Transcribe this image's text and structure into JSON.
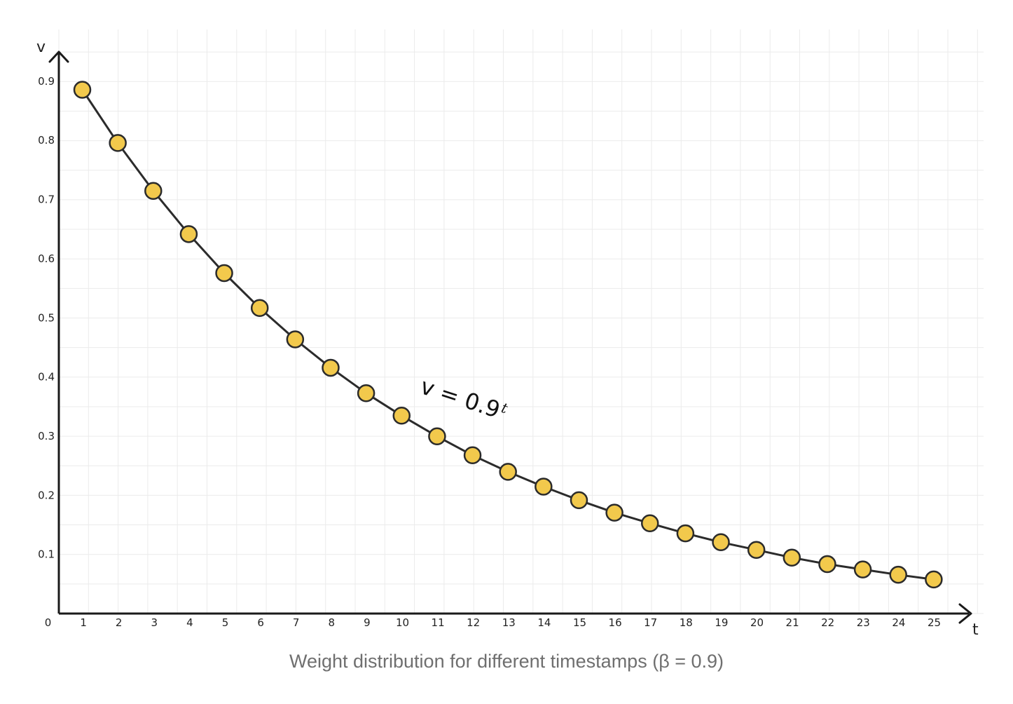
{
  "chart_data": {
    "type": "line",
    "x": [
      1,
      2,
      3,
      4,
      5,
      6,
      7,
      8,
      9,
      10,
      11,
      12,
      13,
      14,
      15,
      16,
      17,
      18,
      19,
      20,
      21,
      22,
      23,
      24,
      25
    ],
    "y": [
      0.9,
      0.81,
      0.729,
      0.656,
      0.59,
      0.531,
      0.478,
      0.43,
      0.387,
      0.349,
      0.314,
      0.282,
      0.254,
      0.229,
      0.206,
      0.185,
      0.167,
      0.15,
      0.135,
      0.122,
      0.109,
      0.098,
      0.089,
      0.08,
      0.072
    ],
    "series": [
      {
        "name": "v = 0.9^t"
      }
    ],
    "xlabel": "t",
    "ylabel": "v",
    "xlim": [
      0,
      25
    ],
    "ylim": [
      0,
      0.9
    ],
    "x_ticks": [
      "0",
      "1",
      "2",
      "3",
      "4",
      "5",
      "6",
      "7",
      "8",
      "9",
      "10",
      "11",
      "12",
      "13",
      "14",
      "15",
      "16",
      "17",
      "18",
      "19",
      "20",
      "21",
      "22",
      "23",
      "24",
      "25"
    ],
    "y_ticks": [
      "0.1",
      "0.2",
      "0.3",
      "0.4",
      "0.5",
      "0.6",
      "0.7",
      "0.8",
      "0.9"
    ],
    "annotation": {
      "base": "v = 0.9",
      "exponent": "t"
    },
    "grid": true,
    "colors": {
      "marker_fill": "#f2c94c",
      "line": "#2b2b2b",
      "grid": "#ebebeb"
    }
  },
  "caption": "Weight distribution for different timestamps (β = 0.9)"
}
